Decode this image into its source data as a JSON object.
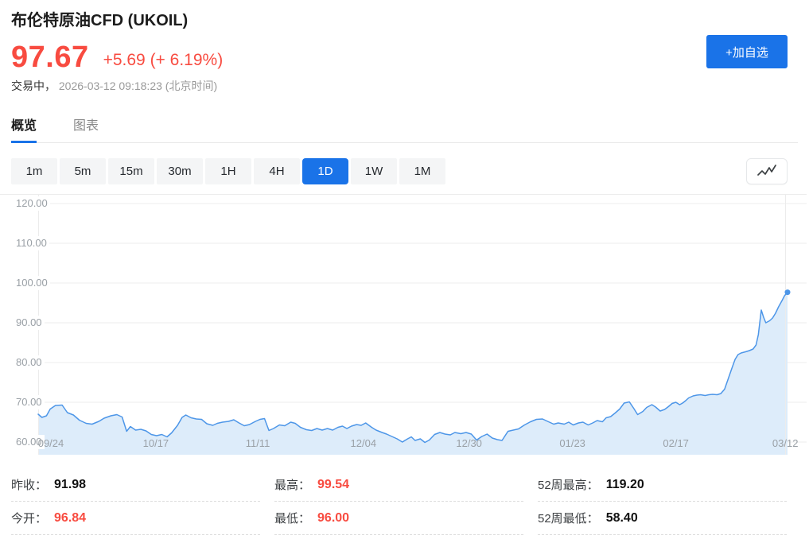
{
  "header": {
    "title": "布伦特原油CFD (UKOIL)",
    "price": "97.67",
    "change": "+5.69 (+ 6.19%)",
    "status_label": "交易中，",
    "timestamp": "2026-03-12 09:18:23",
    "timezone": "(北京时间)",
    "add_watchlist_label": "+加自选"
  },
  "tabs": [
    {
      "label": "概览",
      "active": true
    },
    {
      "label": "图表",
      "active": false
    }
  ],
  "toolbar": {
    "timeframes": [
      {
        "label": "1m",
        "active": false
      },
      {
        "label": "5m",
        "active": false
      },
      {
        "label": "15m",
        "active": false
      },
      {
        "label": "30m",
        "active": false
      },
      {
        "label": "1H",
        "active": false
      },
      {
        "label": "4H",
        "active": false
      },
      {
        "label": "1D",
        "active": true
      },
      {
        "label": "1W",
        "active": false
      },
      {
        "label": "1M",
        "active": false
      }
    ],
    "chart_type_icon": "line-chart-icon"
  },
  "colors": {
    "up_red": "#f84b40",
    "accent_blue": "#1a73e8",
    "line_blue": "#4d96e8",
    "area_fill": "#ddecfa",
    "grid": "#ececec",
    "axis_text": "#9aa0a6"
  },
  "stats": {
    "columns": [
      {
        "cells": [
          {
            "label": "昨收：",
            "value": "91.98",
            "value_color": "dark"
          },
          {
            "label": "今开：",
            "value": "96.84",
            "value_color": "red"
          }
        ]
      },
      {
        "cells": [
          {
            "label": "最高：",
            "value": "99.54",
            "value_color": "red"
          },
          {
            "label": "最低：",
            "value": "96.00",
            "value_color": "red"
          }
        ]
      },
      {
        "cells": [
          {
            "label": "52周最高：",
            "value": "119.20",
            "value_color": "dark"
          },
          {
            "label": "52周最低：",
            "value": "58.40",
            "value_color": "dark"
          }
        ]
      }
    ]
  },
  "chart_data": {
    "type": "area",
    "title": "UKOIL daily close, last ~6 months",
    "series_name": "UKOIL",
    "xlabel": "",
    "ylabel": "",
    "grid": true,
    "legend": false,
    "ylim": [
      56.8,
      122.4
    ],
    "yticks": [
      120,
      110,
      100,
      90,
      80,
      70,
      60
    ],
    "ytick_labels": [
      "120.00",
      "110.00",
      "100.00",
      "90.00",
      "80.00",
      "70.00",
      "60.00"
    ],
    "xticks": [
      {
        "label": "09/24",
        "f": 0.017
      },
      {
        "label": "10/17",
        "f": 0.157
      },
      {
        "label": "11/11",
        "f": 0.293
      },
      {
        "label": "12/04",
        "f": 0.434
      },
      {
        "label": "12/30",
        "f": 0.575
      },
      {
        "label": "01/23",
        "f": 0.713
      },
      {
        "label": "02/17",
        "f": 0.851
      },
      {
        "label": "03/12",
        "f": 0.997
      }
    ],
    "points": [
      [
        0.0,
        67.0
      ],
      [
        0.005,
        66.2
      ],
      [
        0.011,
        66.6
      ],
      [
        0.016,
        68.3
      ],
      [
        0.023,
        69.2
      ],
      [
        0.032,
        69.3
      ],
      [
        0.039,
        67.4
      ],
      [
        0.047,
        66.8
      ],
      [
        0.055,
        65.5
      ],
      [
        0.064,
        64.7
      ],
      [
        0.072,
        64.5
      ],
      [
        0.081,
        65.2
      ],
      [
        0.088,
        66.0
      ],
      [
        0.097,
        66.6
      ],
      [
        0.105,
        66.9
      ],
      [
        0.112,
        66.3
      ],
      [
        0.118,
        62.7
      ],
      [
        0.123,
        63.9
      ],
      [
        0.13,
        63.0
      ],
      [
        0.137,
        63.2
      ],
      [
        0.144,
        62.8
      ],
      [
        0.151,
        61.9
      ],
      [
        0.158,
        61.6
      ],
      [
        0.165,
        61.9
      ],
      [
        0.172,
        61.3
      ],
      [
        0.178,
        62.3
      ],
      [
        0.186,
        64.2
      ],
      [
        0.192,
        66.2
      ],
      [
        0.197,
        66.8
      ],
      [
        0.204,
        66.1
      ],
      [
        0.211,
        65.8
      ],
      [
        0.218,
        65.7
      ],
      [
        0.225,
        64.6
      ],
      [
        0.233,
        64.2
      ],
      [
        0.239,
        64.7
      ],
      [
        0.246,
        65.0
      ],
      [
        0.254,
        65.2
      ],
      [
        0.261,
        65.6
      ],
      [
        0.268,
        64.8
      ],
      [
        0.275,
        64.1
      ],
      [
        0.282,
        64.4
      ],
      [
        0.29,
        65.2
      ],
      [
        0.296,
        65.7
      ],
      [
        0.302,
        65.9
      ],
      [
        0.308,
        62.9
      ],
      [
        0.314,
        63.4
      ],
      [
        0.322,
        64.3
      ],
      [
        0.329,
        64.1
      ],
      [
        0.337,
        65.0
      ],
      [
        0.343,
        64.7
      ],
      [
        0.35,
        63.7
      ],
      [
        0.358,
        63.1
      ],
      [
        0.365,
        62.9
      ],
      [
        0.372,
        63.4
      ],
      [
        0.379,
        63.0
      ],
      [
        0.386,
        63.4
      ],
      [
        0.393,
        63.0
      ],
      [
        0.4,
        63.7
      ],
      [
        0.406,
        64.0
      ],
      [
        0.412,
        63.4
      ],
      [
        0.418,
        64.0
      ],
      [
        0.425,
        64.4
      ],
      [
        0.431,
        64.2
      ],
      [
        0.437,
        64.8
      ],
      [
        0.445,
        63.7
      ],
      [
        0.451,
        63.0
      ],
      [
        0.459,
        62.4
      ],
      [
        0.465,
        62.0
      ],
      [
        0.472,
        61.4
      ],
      [
        0.479,
        60.8
      ],
      [
        0.486,
        60.0
      ],
      [
        0.493,
        60.8
      ],
      [
        0.498,
        61.3
      ],
      [
        0.503,
        60.4
      ],
      [
        0.51,
        60.8
      ],
      [
        0.516,
        59.9
      ],
      [
        0.522,
        60.5
      ],
      [
        0.529,
        61.9
      ],
      [
        0.536,
        62.4
      ],
      [
        0.543,
        62.0
      ],
      [
        0.55,
        61.8
      ],
      [
        0.556,
        62.4
      ],
      [
        0.564,
        62.1
      ],
      [
        0.571,
        62.4
      ],
      [
        0.578,
        62.0
      ],
      [
        0.585,
        60.5
      ],
      [
        0.592,
        61.4
      ],
      [
        0.599,
        62.0
      ],
      [
        0.606,
        61.0
      ],
      [
        0.613,
        60.6
      ],
      [
        0.619,
        60.4
      ],
      [
        0.627,
        62.7
      ],
      [
        0.634,
        63.0
      ],
      [
        0.641,
        63.3
      ],
      [
        0.649,
        64.3
      ],
      [
        0.657,
        65.1
      ],
      [
        0.665,
        65.7
      ],
      [
        0.673,
        65.8
      ],
      [
        0.681,
        65.1
      ],
      [
        0.688,
        64.5
      ],
      [
        0.694,
        64.8
      ],
      [
        0.702,
        64.5
      ],
      [
        0.708,
        65.0
      ],
      [
        0.714,
        64.3
      ],
      [
        0.721,
        64.8
      ],
      [
        0.727,
        65.0
      ],
      [
        0.734,
        64.3
      ],
      [
        0.74,
        64.8
      ],
      [
        0.746,
        65.4
      ],
      [
        0.753,
        65.1
      ],
      [
        0.758,
        66.1
      ],
      [
        0.764,
        66.4
      ],
      [
        0.77,
        67.3
      ],
      [
        0.776,
        68.3
      ],
      [
        0.782,
        69.8
      ],
      [
        0.789,
        70.1
      ],
      [
        0.795,
        68.4
      ],
      [
        0.8,
        66.9
      ],
      [
        0.807,
        67.7
      ],
      [
        0.812,
        68.7
      ],
      [
        0.819,
        69.4
      ],
      [
        0.824,
        68.8
      ],
      [
        0.83,
        67.8
      ],
      [
        0.836,
        68.2
      ],
      [
        0.841,
        68.9
      ],
      [
        0.846,
        69.7
      ],
      [
        0.851,
        70.0
      ],
      [
        0.856,
        69.4
      ],
      [
        0.86,
        69.8
      ],
      [
        0.864,
        70.4
      ],
      [
        0.868,
        71.1
      ],
      [
        0.874,
        71.6
      ],
      [
        0.879,
        71.8
      ],
      [
        0.884,
        71.9
      ],
      [
        0.89,
        71.7
      ],
      [
        0.895,
        71.9
      ],
      [
        0.9,
        72.0
      ],
      [
        0.906,
        71.9
      ],
      [
        0.911,
        72.2
      ],
      [
        0.916,
        73.3
      ],
      [
        0.921,
        76.0
      ],
      [
        0.926,
        78.7
      ],
      [
        0.93,
        80.8
      ],
      [
        0.934,
        82.0
      ],
      [
        0.938,
        82.4
      ],
      [
        0.944,
        82.7
      ],
      [
        0.949,
        83.0
      ],
      [
        0.954,
        83.4
      ],
      [
        0.958,
        84.4
      ],
      [
        0.961,
        87.0
      ],
      [
        0.965,
        93.2
      ],
      [
        0.968,
        91.4
      ],
      [
        0.971,
        90.0
      ],
      [
        0.976,
        90.5
      ],
      [
        0.98,
        91.2
      ],
      [
        0.984,
        92.4
      ],
      [
        0.988,
        94.0
      ],
      [
        0.993,
        95.7
      ],
      [
        0.996,
        96.8
      ],
      [
        1.0,
        97.67
      ]
    ]
  }
}
